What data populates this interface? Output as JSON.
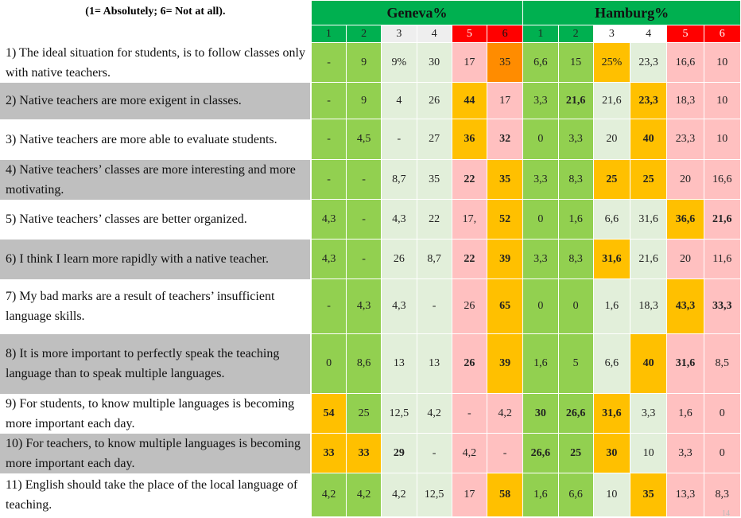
{
  "scale_note": "(1= Absolutely; 6= Not at all).",
  "cities": [
    "Geneva%",
    "Hamburg%"
  ],
  "scale": [
    "1",
    "2",
    "3",
    "4",
    "5",
    "6",
    "1",
    "2",
    "3",
    "4",
    "5",
    "6"
  ],
  "page_number": "14",
  "colors": {
    "city_header": "#00b050",
    "scale_1_2": "#00b050",
    "scale_5": "#ff0000",
    "cell_green": "#92d050",
    "cell_light_green": "#e2efda",
    "cell_pink": "#ffc0c0",
    "cell_amber": "#ffc000",
    "cell_orange": "#ff8c00",
    "cell_white": "#ffffff",
    "row_grey": "#bfbfbf"
  },
  "rows": [
    {
      "q": "1) The ideal situation for students, is to follow classes only with native teachers.",
      "vals": [
        "-",
        "9",
        "9%",
        "30",
        "17",
        "35",
        "6,6",
        "15",
        "25%",
        "23,3",
        "16,6",
        "10"
      ]
    },
    {
      "q": "2) Native teachers are more exigent in classes.",
      "vals": [
        "-",
        "9",
        "4",
        "26",
        "44",
        "17",
        "3,3",
        "21,6",
        "21,6",
        "23,3",
        "18,3",
        "10"
      ]
    },
    {
      "q": "3) Native teachers are more able to evaluate students.",
      "vals": [
        "-",
        "4,5",
        "-",
        "27",
        "36",
        "32",
        "0",
        "3,3",
        "20",
        "40",
        "23,3",
        "10"
      ]
    },
    {
      "q": "4) Native teachers’ classes are more interesting and more motivating.",
      "vals": [
        "-",
        "-",
        "8,7",
        "35",
        "22",
        "35",
        "3,3",
        "8,3",
        "25",
        "25",
        "20",
        "16,6"
      ]
    },
    {
      "q": "5) Native teachers’ classes are better organized.",
      "vals": [
        "4,3",
        "-",
        "4,3",
        "22",
        "17,",
        "52",
        "0",
        "1,6",
        "6,6",
        "31,6",
        "36,6",
        "21,6"
      ]
    },
    {
      "q": "6) I think I learn more rapidly with a native teacher.",
      "vals": [
        "4,3",
        "-",
        "26",
        "8,7",
        "22",
        "39",
        "3,3",
        "8,3",
        "31,6",
        "21,6",
        "20",
        "11,6"
      ]
    },
    {
      "q": "7) My bad marks are a result of teachers’ insufficient language skills.",
      "vals": [
        "-",
        "4,3",
        "4,3",
        "-",
        "26",
        "65",
        "0",
        "0",
        "1,6",
        "18,3",
        "43,3",
        "33,3"
      ]
    },
    {
      "q": "8) It is more important to perfectly speak the teaching language than to speak multiple languages.",
      "vals": [
        "0",
        "8,6",
        "13",
        "13",
        "26",
        "39",
        "1,6",
        "5",
        "6,6",
        "40",
        "31,6",
        "8,5"
      ]
    },
    {
      "q": "9) For students, to know multiple languages is becoming more important each day.",
      "vals": [
        "54",
        "25",
        "12,5",
        "4,2",
        "-",
        "4,2",
        "30",
        "26,6",
        "31,6",
        "3,3",
        "1,6",
        "0"
      ]
    },
    {
      "q": "10) For teachers, to know multiple languages is becoming more important each day.",
      "vals": [
        "33",
        "33",
        "29",
        "-",
        "4,2",
        "-",
        "26,6",
        "25",
        "30",
        "10",
        "3,3",
        "0"
      ]
    },
    {
      "q": "11) English should take the place of the local language of teaching.",
      "vals": [
        "4,2",
        "4,2",
        "4,2",
        "12,5",
        "17",
        "58",
        "1,6",
        "6,6",
        "10",
        "35",
        "13,3",
        "8,3"
      ]
    }
  ]
}
